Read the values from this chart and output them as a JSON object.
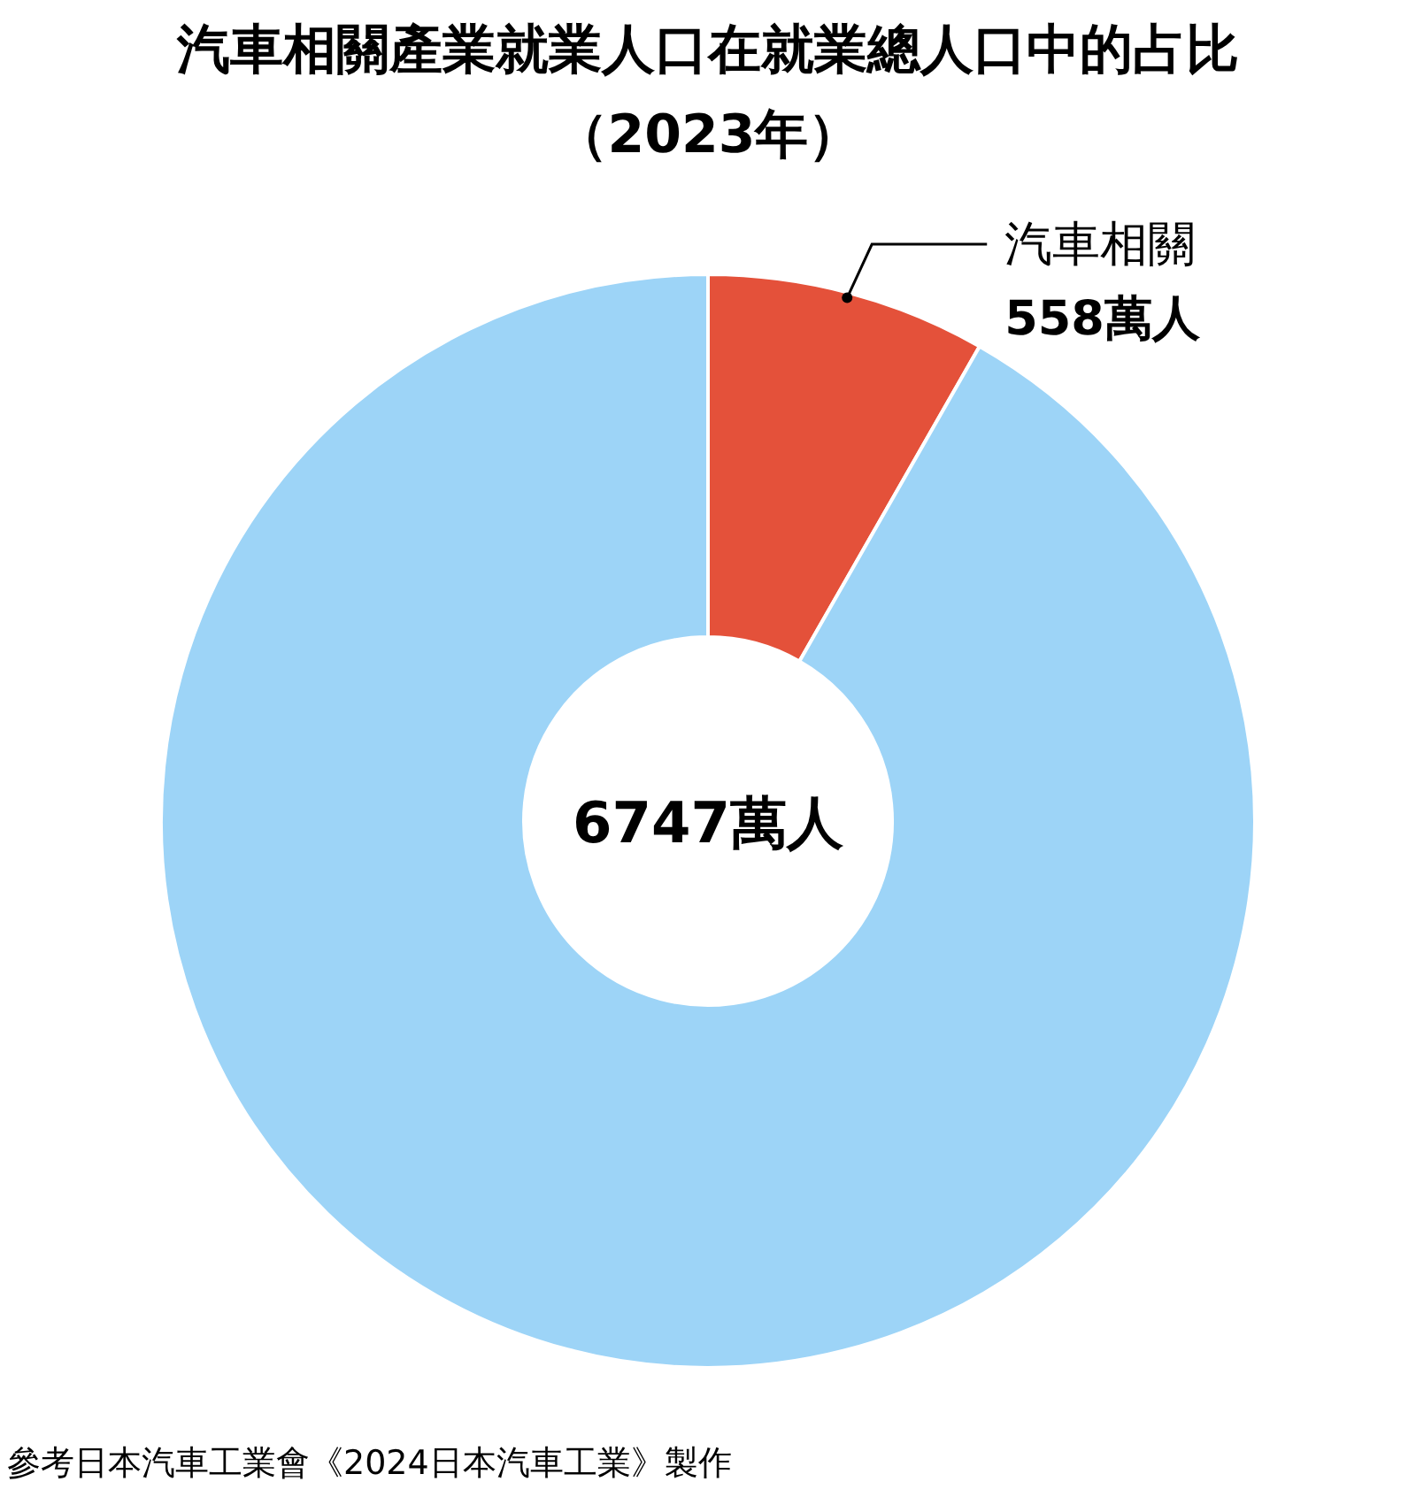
{
  "chart_data": {
    "type": "donut",
    "title": "汽車相關產業就業人口在就業總人口中的占比",
    "subtitle": "（2023年）",
    "categories": [
      "汽車相關",
      null
    ],
    "values": [
      558,
      6189
    ],
    "colors": [
      "#e4513a",
      "#9dd4f7"
    ],
    "value_labels": [
      "558萬人",
      null
    ],
    "annotations": [
      "6747萬人",
      "參考日本汽車工業會《2024日本汽車工業》製作"
    ]
  }
}
